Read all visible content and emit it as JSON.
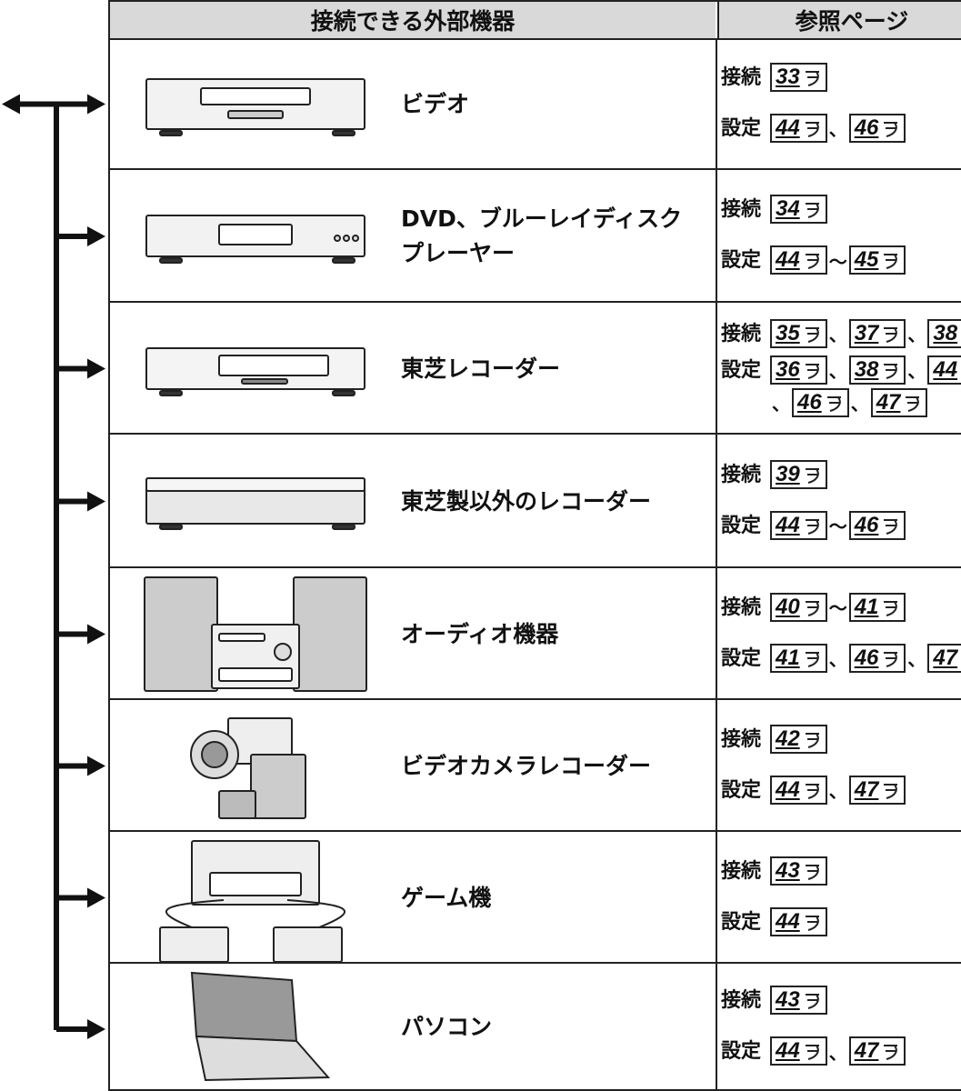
{
  "header": {
    "devices": "接続できる外部機器",
    "pages": "参照ページ"
  },
  "rows": [
    {
      "device": [
        "ビデオ"
      ],
      "refs": [
        {
          "label": "接続",
          "pages": [
            "33"
          ],
          "seps": []
        },
        {
          "label": "設定",
          "pages": [
            "44",
            "46"
          ],
          "seps": [
            "、"
          ]
        }
      ]
    },
    {
      "device": [
        "DVD、ブルーレイディスク",
        "プレーヤー"
      ],
      "refs": [
        {
          "label": "接続",
          "pages": [
            "34"
          ],
          "seps": []
        },
        {
          "label": "設定",
          "pages": [
            "44",
            "45"
          ],
          "seps": [
            "～"
          ]
        }
      ]
    },
    {
      "device": [
        "東芝レコーダー"
      ],
      "refs": [
        {
          "label": "接続",
          "pages": [
            "35",
            "37",
            "38"
          ],
          "seps": [
            "、",
            "、"
          ]
        },
        {
          "label": "設定",
          "pages": [
            "36",
            "38",
            "44",
            "46",
            "47"
          ],
          "seps": [
            "、",
            "、",
            "、",
            "、"
          ]
        }
      ]
    },
    {
      "device": [
        "東芝製以外のレコーダー"
      ],
      "refs": [
        {
          "label": "接続",
          "pages": [
            "39"
          ],
          "seps": []
        },
        {
          "label": "設定",
          "pages": [
            "44",
            "46"
          ],
          "seps": [
            "～"
          ]
        }
      ]
    },
    {
      "device": [
        "オーディオ機器"
      ],
      "refs": [
        {
          "label": "接続",
          "pages": [
            "40",
            "41"
          ],
          "seps": [
            "～"
          ]
        },
        {
          "label": "設定",
          "pages": [
            "41",
            "46",
            "47"
          ],
          "seps": [
            "、",
            "、"
          ]
        }
      ]
    },
    {
      "device": [
        "ビデオカメラレコーダー"
      ],
      "refs": [
        {
          "label": "接続",
          "pages": [
            "42"
          ],
          "seps": []
        },
        {
          "label": "設定",
          "pages": [
            "44",
            "47"
          ],
          "seps": [
            "、"
          ]
        }
      ]
    },
    {
      "device": [
        "ゲーム機"
      ],
      "refs": [
        {
          "label": "接続",
          "pages": [
            "43"
          ],
          "seps": []
        },
        {
          "label": "設定",
          "pages": [
            "44"
          ],
          "seps": []
        }
      ]
    },
    {
      "device": [
        "パソコン"
      ],
      "refs": [
        {
          "label": "接続",
          "pages": [
            "43"
          ],
          "seps": []
        },
        {
          "label": "設定",
          "pages": [
            "44",
            "47"
          ],
          "seps": [
            "、"
          ]
        }
      ]
    }
  ]
}
